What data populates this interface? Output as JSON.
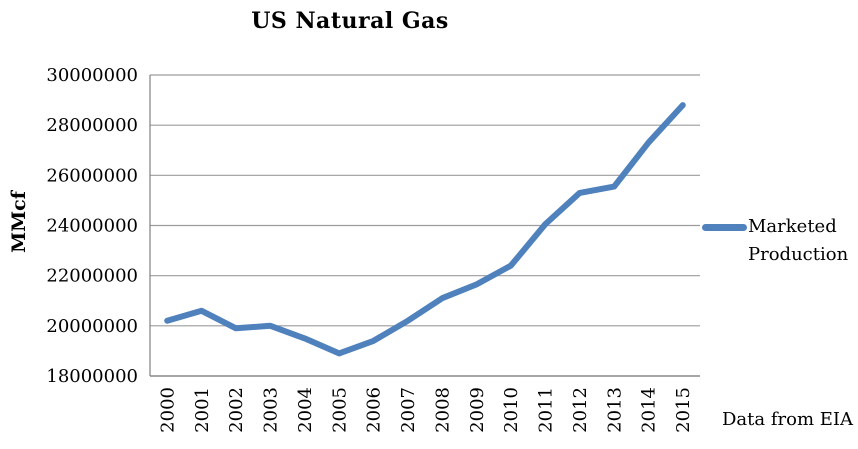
{
  "chart_data": {
    "type": "line",
    "title": "US Natural Gas",
    "ylabel": "MMcf",
    "xlabel": "",
    "footnote": "Data from EIA",
    "categories": [
      "2000",
      "2001",
      "2002",
      "2003",
      "2004",
      "2005",
      "2006",
      "2007",
      "2008",
      "2009",
      "2010",
      "2011",
      "2012",
      "2013",
      "2014",
      "2015"
    ],
    "series": [
      {
        "name": "Marketed Production",
        "color": "#4F81BD",
        "values": [
          20200000,
          20600000,
          19900000,
          20000000,
          19500000,
          18900000,
          19400000,
          20200000,
          21100000,
          21650000,
          22400000,
          24050000,
          25300000,
          25550000,
          27300000,
          28800000
        ]
      }
    ],
    "ylim": [
      18000000,
      30000000
    ],
    "y_ticks": [
      18000000,
      20000000,
      22000000,
      24000000,
      26000000,
      28000000,
      30000000
    ],
    "grid": "horizontal-only",
    "legend_position": "right",
    "colors": {
      "grid": "#9C9C9C",
      "axis": "#808080",
      "text": "#000000",
      "background": "#FFFFFF"
    }
  }
}
